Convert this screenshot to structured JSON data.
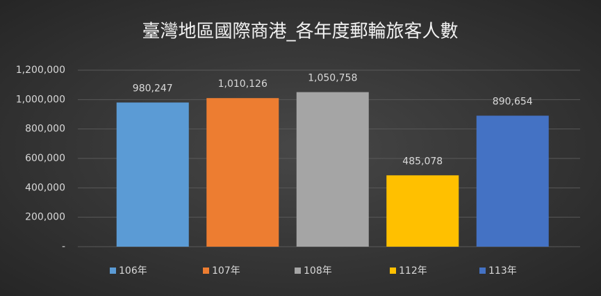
{
  "chart_data": {
    "type": "bar",
    "title": "臺灣地區國際商港_各年度郵輪旅客人數",
    "series": [
      {
        "name": "106年",
        "color": "#5b9bd5",
        "values": [
          980247
        ],
        "value_labels": [
          "980,247"
        ]
      },
      {
        "name": "107年",
        "color": "#ed7d31",
        "values": [
          1010126
        ],
        "value_labels": [
          "1,010,126"
        ]
      },
      {
        "name": "108年",
        "color": "#a5a5a5",
        "values": [
          1050758
        ],
        "value_labels": [
          "1,050,758"
        ]
      },
      {
        "name": "112年",
        "color": "#ffc000",
        "values": [
          485078
        ],
        "value_labels": [
          "485,078"
        ]
      },
      {
        "name": "113年",
        "color": "#4472c4",
        "values": [
          890654
        ],
        "value_labels": [
          "890,654"
        ]
      }
    ],
    "ylim": [
      0,
      1200000
    ],
    "yticks": [
      {
        "value": 0,
        "label": "-"
      },
      {
        "value": 200000,
        "label": "200,000"
      },
      {
        "value": 400000,
        "label": "400,000"
      },
      {
        "value": 600000,
        "label": "600,000"
      },
      {
        "value": 800000,
        "label": "800,000"
      },
      {
        "value": 1000000,
        "label": "1,000,000"
      },
      {
        "value": 1200000,
        "label": "1,200,000"
      }
    ],
    "grid": true,
    "legend": "bottom"
  }
}
